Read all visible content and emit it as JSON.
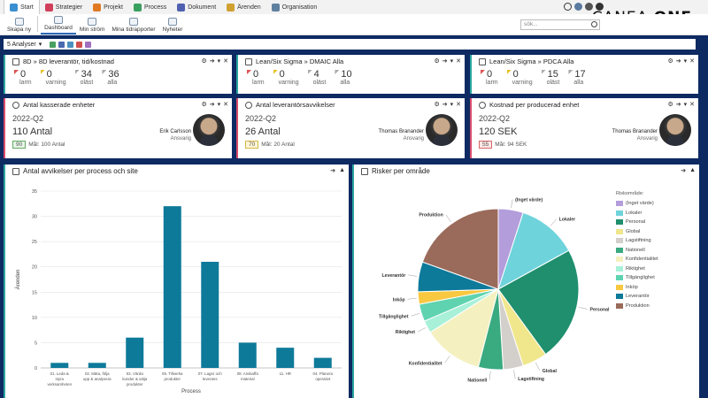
{
  "nav": {
    "tabs": [
      {
        "label": "Start",
        "color": "#3a8fd0"
      },
      {
        "label": "Strategier",
        "color": "#d0405a"
      },
      {
        "label": "Projekt",
        "color": "#e07a22"
      },
      {
        "label": "Process",
        "color": "#3aa060"
      },
      {
        "label": "Dokument",
        "color": "#5060b0"
      },
      {
        "label": "Ärenden",
        "color": "#d0a030"
      },
      {
        "label": "Organisation",
        "color": "#6080a0"
      }
    ],
    "brand_light": "CANEA",
    "brand_bold": "ONE"
  },
  "ribbon": {
    "buttons": [
      "Skapa ny",
      "Dashboard",
      "Min ström",
      "Mina tidrapporter",
      "Nyheter"
    ],
    "search_placeholder": "sök..."
  },
  "analysbar": {
    "label": "5 Analyser"
  },
  "kpi_top": [
    {
      "title": "8D » 8D leverantör, tid/kostnad",
      "stats": [
        {
          "num": "0",
          "label": "larm",
          "flag": "#e05050"
        },
        {
          "num": "0",
          "label": "varning",
          "flag": "#e8c020"
        },
        {
          "num": "34",
          "label": "oläst",
          "flag": "#aaaaaa"
        },
        {
          "num": "36",
          "label": "alla",
          "flag": "#aaaaaa"
        }
      ]
    },
    {
      "title": "Lean/Six Sigma » DMAIC Alla",
      "stats": [
        {
          "num": "0",
          "label": "larm",
          "flag": "#e05050"
        },
        {
          "num": "0",
          "label": "varning",
          "flag": "#e8c020"
        },
        {
          "num": "4",
          "label": "oläst",
          "flag": "#aaaaaa"
        },
        {
          "num": "10",
          "label": "alla",
          "flag": "#aaaaaa"
        }
      ]
    },
    {
      "title": "Lean/Six Sigma » PDCA Alla",
      "stats": [
        {
          "num": "0",
          "label": "larm",
          "flag": "#e05050"
        },
        {
          "num": "0",
          "label": "varning",
          "flag": "#e8c020"
        },
        {
          "num": "15",
          "label": "oläst",
          "flag": "#aaaaaa"
        },
        {
          "num": "17",
          "label": "alla",
          "flag": "#aaaaaa"
        }
      ]
    }
  ],
  "kpi_mid": [
    {
      "title": "Antal kasserade enheter",
      "period": "2022-Q2",
      "value": "110 Antal",
      "box": "90",
      "box_color": "#e6f4e6",
      "box_border": "#66aa66",
      "target": "Mål: 100 Antal",
      "person": "Erik Carlsson",
      "role": "Ansvarig"
    },
    {
      "title": "Antal leverantörsavvikelser",
      "period": "2022-Q2",
      "value": "26 Antal",
      "box": "70",
      "box_color": "#fff6d6",
      "box_border": "#d6b84a",
      "target": "Mål: 20 Antal",
      "person": "Thomas Branander",
      "role": "Ansvarig"
    },
    {
      "title": "Kostnad per producerad enhet",
      "period": "2022-Q2",
      "value": "120 SEK",
      "box": "55",
      "box_color": "#fde6e6",
      "box_border": "#d66a6a",
      "target": "Mål: 94 SEK",
      "person": "Thomas Branander",
      "role": "Ansvarig"
    }
  ],
  "panel_bar": {
    "title": "Antal avvikelser per process och site"
  },
  "panel_pie": {
    "title": "Risker per område"
  },
  "chart_data": [
    {
      "type": "bar",
      "title": "Antal avvikelser per process och site",
      "xlabel": "Process",
      "ylabel": "Ärenden",
      "ylim": [
        0,
        35
      ],
      "yticks": [
        0,
        5,
        10,
        15,
        20,
        25,
        30,
        35
      ],
      "categories": [
        "01. Leda & styra verksamheten",
        "02. Mäta, följa upp & analysera",
        "03. Värda kunder & sälja produkter",
        "05. Tillverka produkter",
        "07. Lager och leverans",
        "08. Anskaffa material",
        "11. HR",
        "04. Planera operativt"
      ],
      "values": [
        1,
        1,
        6,
        32,
        21,
        5,
        4,
        2
      ],
      "color": "#0e7a9a",
      "grid": true
    },
    {
      "type": "pie",
      "title": "Risker per område",
      "legend_title": "Riskområde:",
      "legend_position": "right",
      "slices": [
        {
          "label": "(Inget värde)",
          "value": 5,
          "color": "#b39ddb"
        },
        {
          "label": "Lokaler",
          "value": 12,
          "color": "#6fd3dc"
        },
        {
          "label": "Personal",
          "value": 23,
          "color": "#1f8f6e"
        },
        {
          "label": "Global",
          "value": 5,
          "color": "#f0e68c"
        },
        {
          "label": "Lagstiftning",
          "value": 4,
          "color": "#d3cfcb"
        },
        {
          "label": "Nationell",
          "value": 5,
          "color": "#3aaa80"
        },
        {
          "label": "Konfidentialitet",
          "value": 12,
          "color": "#f5f0c0"
        },
        {
          "label": "Riktighet",
          "value": 2.5,
          "color": "#a8f0d8"
        },
        {
          "label": "Tillgänglighet",
          "value": 3.5,
          "color": "#5fd3b0"
        },
        {
          "label": "Inköp",
          "value": 2.5,
          "color": "#f8c840"
        },
        {
          "label": "Leverantör",
          "value": 6,
          "color": "#0e7a9a"
        },
        {
          "label": "Produktion",
          "value": 19.5,
          "color": "#9a6a5a"
        }
      ]
    }
  ]
}
